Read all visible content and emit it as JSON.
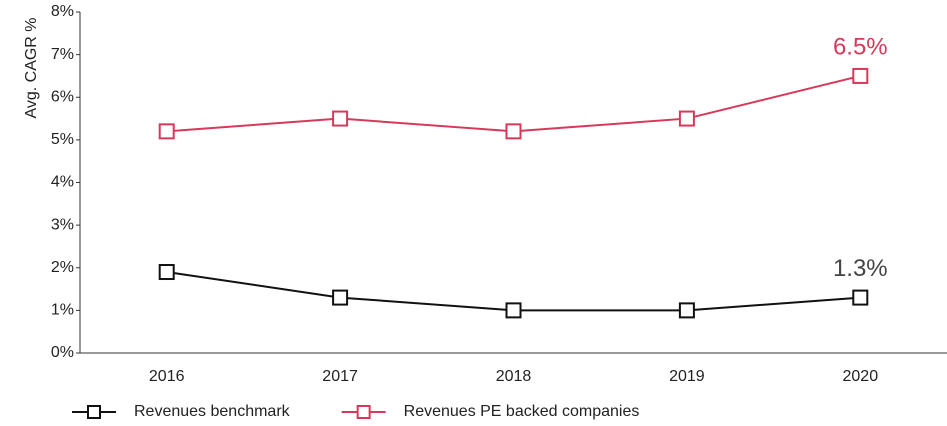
{
  "chart_data": {
    "type": "line",
    "ylabel": "Avg. CAGR %",
    "categories": [
      "2016",
      "2017",
      "2018",
      "2019",
      "2020"
    ],
    "series": [
      {
        "name": "Revenues benchmark",
        "color": "#111111",
        "values": [
          1.9,
          1.3,
          1.0,
          1.0,
          1.3
        ],
        "value_labels": [
          null,
          null,
          null,
          null,
          "1.3%"
        ],
        "label_color": "#444444"
      },
      {
        "name": "Revenues PE backed companies",
        "color": "#d6395a",
        "values": [
          5.2,
          5.5,
          5.2,
          5.5,
          6.5
        ],
        "value_labels": [
          null,
          null,
          null,
          null,
          "6.5%"
        ],
        "label_color": "#d6395a"
      }
    ],
    "ylim": [
      0,
      8
    ],
    "yticks": [
      {
        "value": 0,
        "label": "0%"
      },
      {
        "value": 1,
        "label": "1%"
      },
      {
        "value": 2,
        "label": "2%"
      },
      {
        "value": 3,
        "label": "3%"
      },
      {
        "value": 4,
        "label": "4%"
      },
      {
        "value": 5,
        "label": "5%"
      },
      {
        "value": 6,
        "label": "6%"
      },
      {
        "value": 7,
        "label": "7%"
      },
      {
        "value": 8,
        "label": "8%"
      }
    ],
    "grid": false,
    "legend": "bottom-left"
  }
}
